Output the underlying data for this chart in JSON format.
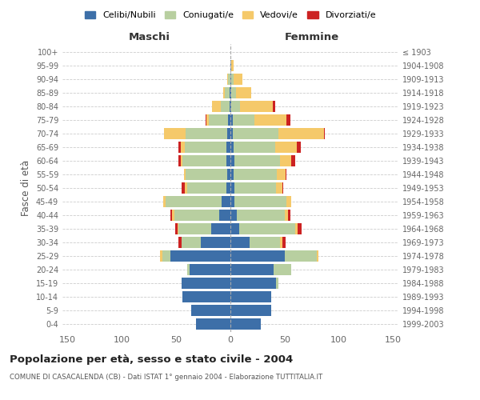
{
  "age_groups": [
    "0-4",
    "5-9",
    "10-14",
    "15-19",
    "20-24",
    "25-29",
    "30-34",
    "35-39",
    "40-44",
    "45-49",
    "50-54",
    "55-59",
    "60-64",
    "65-69",
    "70-74",
    "75-79",
    "80-84",
    "85-89",
    "90-94",
    "95-99",
    "100+"
  ],
  "birth_years": [
    "1999-2003",
    "1994-1998",
    "1989-1993",
    "1984-1988",
    "1979-1983",
    "1974-1978",
    "1969-1973",
    "1964-1968",
    "1959-1963",
    "1954-1958",
    "1949-1953",
    "1944-1948",
    "1939-1943",
    "1934-1938",
    "1929-1933",
    "1924-1928",
    "1919-1923",
    "1914-1918",
    "1909-1913",
    "1904-1908",
    "≤ 1903"
  ],
  "male": {
    "celibi": [
      32,
      36,
      44,
      45,
      38,
      55,
      27,
      18,
      10,
      8,
      4,
      3,
      4,
      4,
      3,
      2,
      1,
      1,
      0,
      0,
      0
    ],
    "coniugati": [
      0,
      0,
      0,
      0,
      2,
      8,
      18,
      30,
      42,
      52,
      36,
      38,
      40,
      38,
      38,
      18,
      8,
      4,
      2,
      0,
      0
    ],
    "vedovi": [
      0,
      0,
      0,
      0,
      0,
      2,
      0,
      1,
      2,
      2,
      2,
      2,
      2,
      4,
      20,
      2,
      8,
      2,
      1,
      0,
      0
    ],
    "divorziati": [
      0,
      0,
      0,
      0,
      0,
      0,
      3,
      2,
      1,
      0,
      3,
      0,
      2,
      2,
      0,
      1,
      0,
      0,
      0,
      0,
      0
    ]
  },
  "female": {
    "nubili": [
      28,
      38,
      38,
      42,
      40,
      50,
      18,
      8,
      6,
      4,
      4,
      3,
      4,
      3,
      2,
      2,
      1,
      1,
      1,
      1,
      0
    ],
    "coniugate": [
      0,
      0,
      0,
      2,
      16,
      30,
      28,
      52,
      44,
      48,
      38,
      40,
      42,
      38,
      42,
      20,
      8,
      4,
      2,
      0,
      0
    ],
    "vedove": [
      0,
      0,
      0,
      0,
      0,
      1,
      2,
      2,
      3,
      4,
      6,
      8,
      10,
      20,
      42,
      30,
      30,
      14,
      8,
      2,
      0
    ],
    "divorziate": [
      0,
      0,
      0,
      0,
      0,
      0,
      3,
      4,
      2,
      0,
      1,
      1,
      4,
      4,
      1,
      3,
      2,
      0,
      0,
      0,
      0
    ]
  },
  "colors": {
    "celibi": "#3d6fa8",
    "coniugati": "#b8cfa0",
    "vedovi": "#f5c96a",
    "divorziati": "#cc2222"
  },
  "title": "Popolazione per età, sesso e stato civile - 2004",
  "subtitle": "COMUNE DI CASACALENDA (CB) - Dati ISTAT 1° gennaio 2004 - Elaborazione TUTTITALIA.IT",
  "xlabel_left": "Maschi",
  "xlabel_right": "Femmine",
  "ylabel_left": "Fasce di età",
  "legend_labels": [
    "Celibi/Nubili",
    "Coniugati/e",
    "Vedovi/e",
    "Divorziati/e"
  ],
  "xlim": 155,
  "background_color": "#ffffff",
  "grid_color": "#cccccc"
}
